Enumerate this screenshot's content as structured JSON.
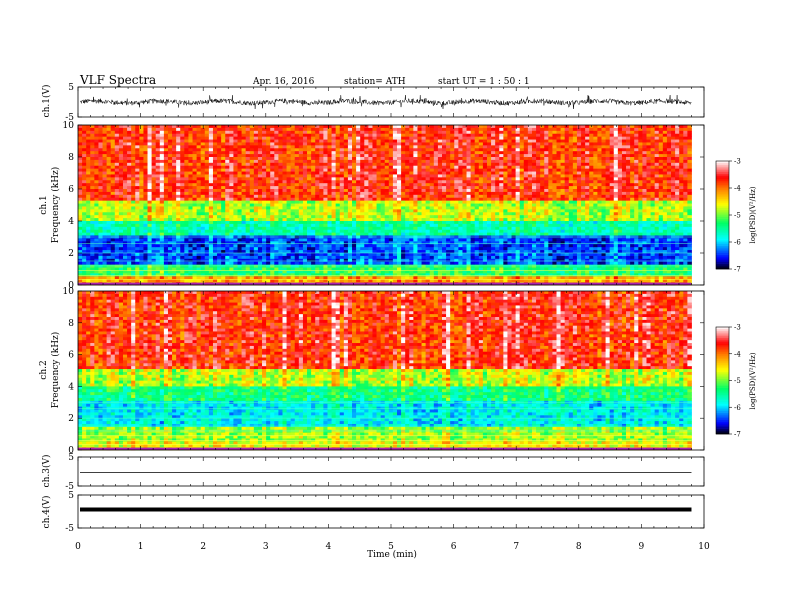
{
  "header": {
    "title": "VLF  Spectra",
    "date": "Apr. 16, 2016",
    "station": "station= ATH",
    "start": "start  UT =   1 : 50 : 1"
  },
  "colors": {
    "scale": [
      "#000000",
      "#0000ff",
      "#00ffff",
      "#00ff66",
      "#ffff00",
      "#ff7700",
      "#ff0000",
      "#ffffff"
    ],
    "trace": "#000000"
  },
  "chart_data": [
    {
      "type": "line",
      "name": "ch1-waveform",
      "ylabel": "ch.1(V)",
      "ylim": [
        -5,
        5
      ],
      "yticks": [
        "5",
        "-5"
      ],
      "description_values": {
        "baseline": 0,
        "amplitude_range": [
          -2.3,
          2.3
        ]
      }
    },
    {
      "type": "heatmap",
      "name": "ch1-spectrogram",
      "side_label": "ch.1",
      "ylabel": "Frequency  (kHz)",
      "ylim": [
        0,
        10
      ],
      "yticks": [
        "0",
        "2",
        "4",
        "6",
        "8",
        "10"
      ],
      "xlim": [
        0,
        10
      ],
      "x_extent_min": 9.8,
      "colorbar": {
        "label": "log(PSD)(V²/Hz)",
        "ticks": [
          "-3",
          "-4",
          "-5",
          "-6",
          "-7"
        ],
        "range": [
          -7,
          -3
        ]
      },
      "bands": [
        {
          "f": [
            0,
            0.5
          ],
          "level": -4.2
        },
        {
          "f": [
            0.5,
            1.2
          ],
          "level": -5.3
        },
        {
          "f": [
            1.2,
            3.0
          ],
          "level": -6.4
        },
        {
          "f": [
            3.0,
            4.0
          ],
          "level": -5.6
        },
        {
          "f": [
            4.0,
            5.2
          ],
          "level": -4.8
        },
        {
          "f": [
            5.2,
            10
          ],
          "level": -3.7
        }
      ]
    },
    {
      "type": "heatmap",
      "name": "ch2-spectrogram",
      "side_label": "ch.2",
      "ylabel": "Frequency  (kHz)",
      "ylim": [
        0,
        10
      ],
      "yticks": [
        "0",
        "2",
        "4",
        "6",
        "8",
        "10"
      ],
      "xlim": [
        0,
        10
      ],
      "x_extent_min": 9.8,
      "colorbar": {
        "label": "log(PSD)(V²/Hz)",
        "ticks": [
          "-3",
          "-4",
          "-5",
          "-6",
          "-7"
        ],
        "range": [
          -7,
          -3
        ]
      },
      "bands": [
        {
          "f": [
            0,
            0.5
          ],
          "level": -4.6
        },
        {
          "f": [
            0.5,
            1.5
          ],
          "level": -4.9
        },
        {
          "f": [
            1.5,
            3.0
          ],
          "level": -5.9
        },
        {
          "f": [
            3.0,
            4.0
          ],
          "level": -5.4
        },
        {
          "f": [
            4.0,
            5.0
          ],
          "level": -4.8
        },
        {
          "f": [
            5.0,
            10
          ],
          "level": -3.7
        }
      ]
    },
    {
      "type": "line",
      "name": "ch3-waveform",
      "ylabel": "ch.3(V)",
      "ylim": [
        -5,
        5
      ],
      "yticks": [
        "5",
        "-5"
      ],
      "description_values": {
        "baseline": 0
      }
    },
    {
      "type": "line",
      "name": "ch4-waveform",
      "ylabel": "ch.4(V)",
      "ylim": [
        -5,
        5
      ],
      "yticks": [
        "5",
        "-5"
      ],
      "description_values": {
        "baseline": 0
      }
    }
  ],
  "xaxis": {
    "label": "Time  (min)",
    "ticks": [
      "0",
      "1",
      "2",
      "3",
      "4",
      "5",
      "6",
      "7",
      "8",
      "9",
      "10"
    ],
    "xlim": [
      0,
      10
    ]
  }
}
